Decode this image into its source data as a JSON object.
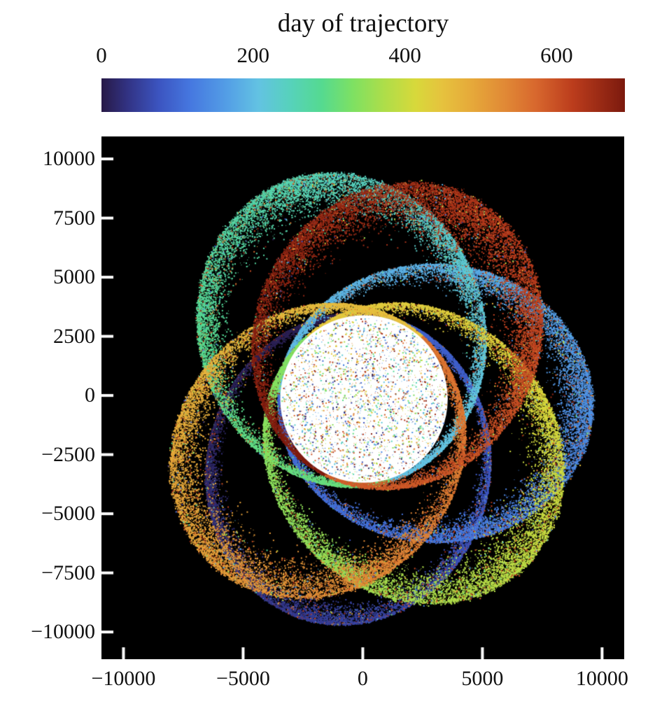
{
  "figure": {
    "background": "#ffffff",
    "plot_background": "#000000"
  },
  "chart_data": {
    "type": "scatter",
    "title": "day of trajectory",
    "colorbar_label": "day of trajectory",
    "color_range_days": [
      0,
      690
    ],
    "colorbar_ticks": [
      {
        "value": 0,
        "label": "0"
      },
      {
        "value": 200,
        "label": "200"
      },
      {
        "value": 400,
        "label": "400"
      },
      {
        "value": 600,
        "label": "600"
      }
    ],
    "colormap_stops": [
      [
        0.0,
        "#281a47"
      ],
      [
        0.05,
        "#323384"
      ],
      [
        0.11,
        "#3c55c1"
      ],
      [
        0.17,
        "#4678e0"
      ],
      [
        0.24,
        "#549fe6"
      ],
      [
        0.3,
        "#63c3e3"
      ],
      [
        0.36,
        "#57d2bc"
      ],
      [
        0.42,
        "#55da91"
      ],
      [
        0.48,
        "#7ee163"
      ],
      [
        0.54,
        "#aede4a"
      ],
      [
        0.6,
        "#d8d93b"
      ],
      [
        0.65,
        "#e6c33e"
      ],
      [
        0.71,
        "#e6a83a"
      ],
      [
        0.77,
        "#e18a36"
      ],
      [
        0.83,
        "#d8682e"
      ],
      [
        0.9,
        "#bc3d1d"
      ],
      [
        1.0,
        "#7c1a0e"
      ]
    ],
    "xlim": [
      -10920,
      10925
    ],
    "ylim": [
      -11150,
      10950
    ],
    "xticks": [
      {
        "value": -10000,
        "label": "−10000"
      },
      {
        "value": -5000,
        "label": "−5000"
      },
      {
        "value": 0,
        "label": "0"
      },
      {
        "value": 5000,
        "label": "5000"
      },
      {
        "value": 10000,
        "label": "10000"
      }
    ],
    "yticks": [
      {
        "value": 10000,
        "label": "10000"
      },
      {
        "value": 7500,
        "label": "7500"
      },
      {
        "value": 5000,
        "label": "5000"
      },
      {
        "value": 2500,
        "label": "2500"
      },
      {
        "value": 0,
        "label": "0"
      },
      {
        "value": -2500,
        "label": "−2500"
      },
      {
        "value": -5000,
        "label": "−5000"
      },
      {
        "value": -7500,
        "label": "−7500"
      },
      {
        "value": -10000,
        "label": "−10000"
      }
    ],
    "central_body": {
      "x": 50,
      "y": -150,
      "radius": 3500,
      "color": "#ffffff",
      "speckle_count": 2600
    },
    "mix_fraction": 0.12,
    "orbit_petals": [
      {
        "name": "indigo-petal-days-0-92",
        "apoapsis_angle_deg": 257,
        "r_peri": 3620,
        "r_apo": 9600,
        "day_start": 0,
        "day_end": 92,
        "points": 11000,
        "sigma_peri": 90,
        "sigma_apo": 380,
        "rim_fraction": 0.3,
        "boost": 1800
      },
      {
        "name": "skyblue-petal-days-96-200",
        "apoapsis_angle_deg": 357,
        "r_peri": 3620,
        "r_apo": 9500,
        "day_start": 96,
        "day_end": 200,
        "points": 14000,
        "sigma_peri": 150,
        "sigma_apo": 620,
        "rim_fraction": 0.14,
        "boost": 1200
      },
      {
        "name": "teal-petal-days-204-312",
        "apoapsis_angle_deg": 108,
        "r_peri": 3620,
        "r_apo": 9750,
        "day_start": 204,
        "day_end": 312,
        "points": 14000,
        "sigma_peri": 150,
        "sigma_apo": 680,
        "rim_fraction": 0.16,
        "boost": 1200
      },
      {
        "name": "gold-petal-days-332-442",
        "apoapsis_angle_deg": 312,
        "r_peri": 3620,
        "r_apo": 9700,
        "day_start": 332,
        "day_end": 442,
        "points": 14000,
        "sigma_peri": 160,
        "sigma_apo": 700,
        "rim_fraction": 0.14,
        "boost": 1200
      },
      {
        "name": "orange-petal-days-452-560",
        "apoapsis_angle_deg": 228,
        "r_peri": 3620,
        "r_apo": 9400,
        "day_start": 452,
        "day_end": 560,
        "points": 13000,
        "sigma_peri": 160,
        "sigma_apo": 720,
        "rim_fraction": 0.15,
        "boost": 1200
      },
      {
        "name": "darkred-petal-days-584-690",
        "apoapsis_angle_deg": 63,
        "r_peri": 3620,
        "r_apo": 9600,
        "day_start": 584,
        "day_end": 690,
        "points": 15000,
        "sigma_peri": 200,
        "sigma_apo": 860,
        "rim_fraction": 0.1,
        "boost": 800
      }
    ]
  }
}
